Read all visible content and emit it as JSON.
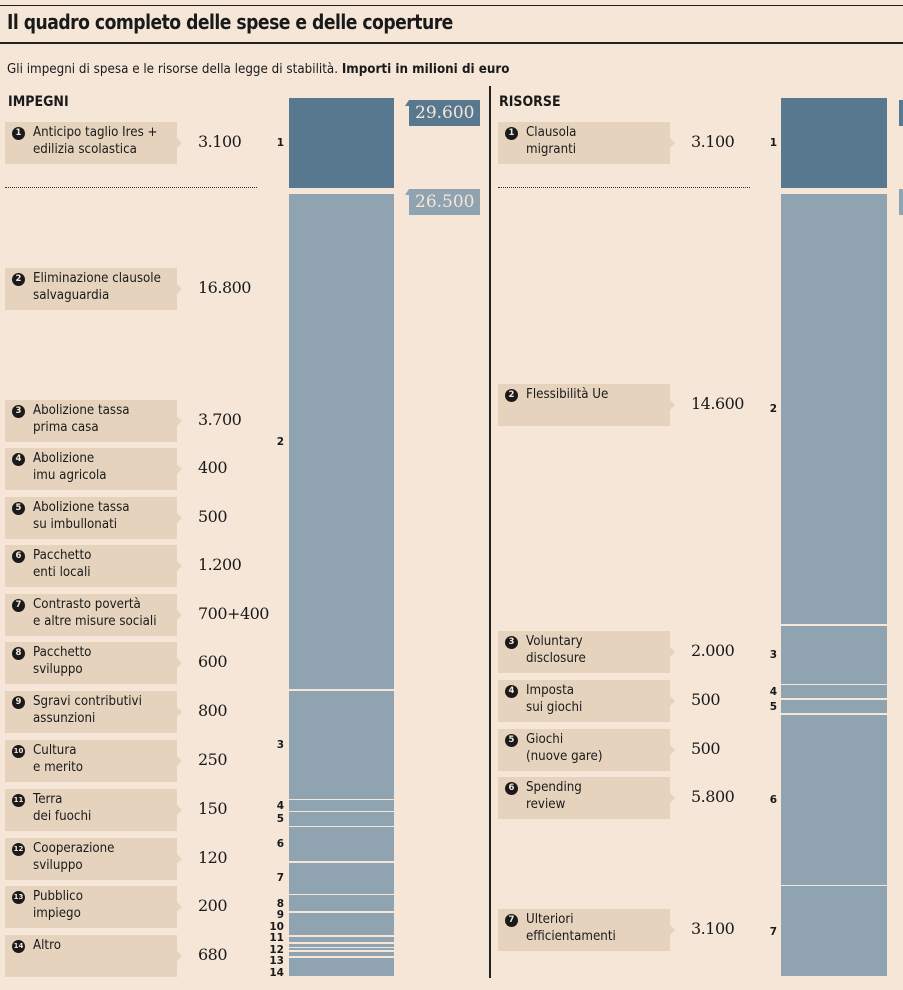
{
  "title": "Il quadro completo delle spese e delle coperture",
  "subtitle": {
    "text": "Gli impegni di spesa e le risorse della legge di stabilità. ",
    "bold": "Importi in milioni di euro"
  },
  "colors": {
    "background": "#f5e6d8",
    "dark_bar": "#58788f",
    "light_bar": "#8fa3b0",
    "label_box": "#e6d3be"
  },
  "chart_data": {
    "type": "stacked-bar",
    "title": "Il quadro completo delle spese e delle coperture",
    "unit": "milioni di euro",
    "series": [
      {
        "name": "IMPEGNI",
        "total": 29600,
        "total_label": "29.600",
        "subtotal": 26500,
        "subtotal_label": "26.500",
        "items": [
          {
            "n": "1",
            "label": "Anticipo taglio Ires +\nedilizia scolastica",
            "value": 3100,
            "display": "3.100"
          },
          {
            "n": "2",
            "label": "Eliminazione clausole\nsalvaguardia",
            "value": 16800,
            "display": "16.800"
          },
          {
            "n": "3",
            "label": "Abolizione tassa\nprima casa",
            "value": 3700,
            "display": "3.700"
          },
          {
            "n": "4",
            "label": "Abolizione\nimu agricola",
            "value": 400,
            "display": "400"
          },
          {
            "n": "5",
            "label": "Abolizione tassa\nsu imbullonati",
            "value": 500,
            "display": "500"
          },
          {
            "n": "6",
            "label": "Pacchetto\nenti locali",
            "value": 1200,
            "display": "1.200"
          },
          {
            "n": "7",
            "label": "Contrasto povertà\ne altre misure sociali",
            "value": 1100,
            "display": "700+400"
          },
          {
            "n": "8",
            "label": "Pacchetto\nsviluppo",
            "value": 600,
            "display": "600"
          },
          {
            "n": "9",
            "label": "Sgravi contributivi\nassunzioni",
            "value": 800,
            "display": "800"
          },
          {
            "n": "10",
            "label": "Cultura\ne merito",
            "value": 250,
            "display": "250"
          },
          {
            "n": "11",
            "label": "Terra\ndei fuochi",
            "value": 150,
            "display": "150"
          },
          {
            "n": "12",
            "label": "Cooperazione\nsviluppo",
            "value": 120,
            "display": "120"
          },
          {
            "n": "13",
            "label": "Pubblico\nimpiego",
            "value": 200,
            "display": "200"
          },
          {
            "n": "14",
            "label": "Altro",
            "value": 680,
            "display": "680"
          }
        ]
      },
      {
        "name": "RISORSE",
        "total": 29600,
        "subtotal": 26500,
        "items": [
          {
            "n": "1",
            "label": "Clausola\nmigranti",
            "value": 3100,
            "display": "3.100"
          },
          {
            "n": "2",
            "label": "Flessibilità Ue",
            "value": 14600,
            "display": "14.600"
          },
          {
            "n": "3",
            "label": "Voluntary\ndisclosure",
            "value": 2000,
            "display": "2.000"
          },
          {
            "n": "4",
            "label": "Imposta\nsui giochi",
            "value": 500,
            "display": "500"
          },
          {
            "n": "5",
            "label": "Giochi\n(nuove gare)",
            "value": 500,
            "display": "500"
          },
          {
            "n": "6",
            "label": "Spending\nreview",
            "value": 5800,
            "display": "5.800"
          },
          {
            "n": "7",
            "label": "Ulteriori\nefficientamenti",
            "value": 3100,
            "display": "3.100"
          }
        ]
      }
    ]
  }
}
